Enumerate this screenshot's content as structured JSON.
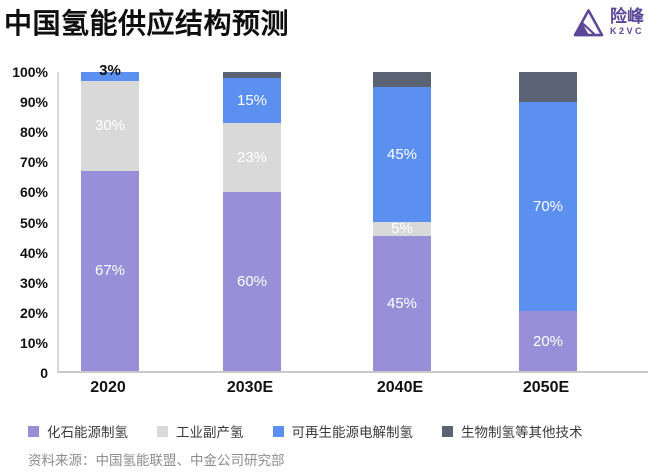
{
  "header": {
    "title": "中国氢能供应结构预测",
    "logo_name": "险峰",
    "logo_sub": "K2VC",
    "brand_color": "#5C4699"
  },
  "chart_data": {
    "type": "bar",
    "subtype": "stacked-percent",
    "title": "中国氢能供应结构预测",
    "categories": [
      "2020",
      "2030E",
      "2040E",
      "2050E"
    ],
    "series": [
      {
        "name": "化石能源制氢",
        "color": "#988FD8",
        "values": [
          67,
          60,
          45,
          20
        ],
        "labels": [
          "67%",
          "60%",
          "45%",
          "20%"
        ]
      },
      {
        "name": "工业副产氢",
        "color": "#D9D9D9",
        "values": [
          30,
          23,
          5,
          0
        ],
        "labels": [
          "30%",
          "23%",
          "5%",
          null
        ]
      },
      {
        "name": "可再生能源电解制氢",
        "color": "#5B8FF0",
        "values": [
          3,
          15,
          45,
          70
        ],
        "labels": [
          "3%",
          "15%",
          "45%",
          "70%"
        ],
        "label_outside_indices": [
          0
        ]
      },
      {
        "name": "生物制氢等其他技术",
        "color": "#5A6273",
        "values": [
          0,
          2,
          5,
          10
        ],
        "labels": [
          null,
          null,
          null,
          null
        ]
      }
    ],
    "ylim": [
      0,
      100
    ],
    "ytick_labels": [
      "100%",
      "90%",
      "80%",
      "70%",
      "60%",
      "50%",
      "40%",
      "30%",
      "20%",
      "10%",
      "0"
    ],
    "grid": false,
    "legend_position": "bottom",
    "label_color_inside": "#FFFFFF",
    "label_color_outside": "#111111"
  },
  "source": "资料来源：中国氢能联盟、中金公司研究部"
}
